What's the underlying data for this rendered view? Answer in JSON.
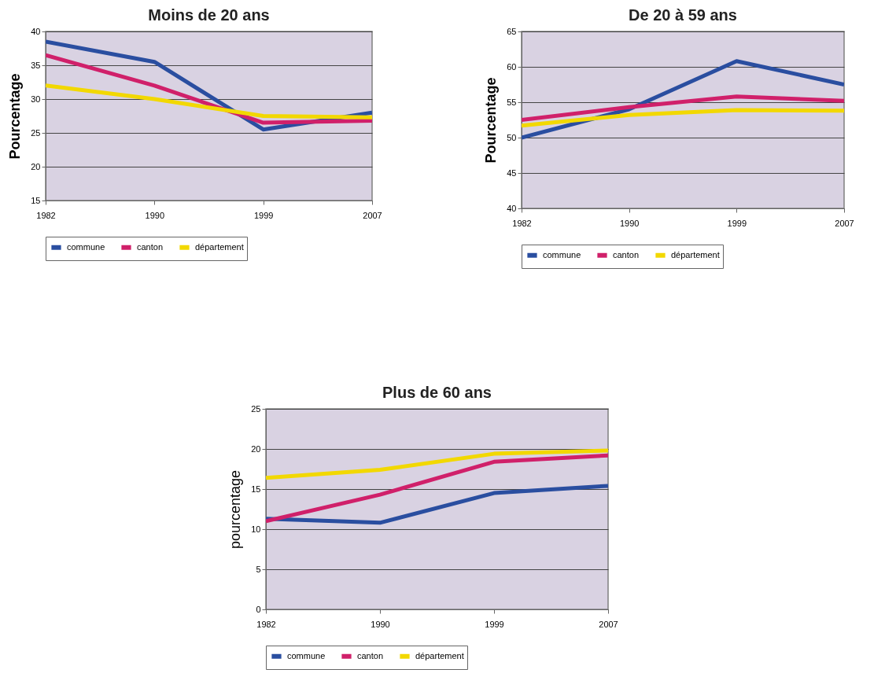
{
  "chart_data": [
    {
      "type": "line",
      "title": "Moins de 20 ans",
      "ylabel": "Pourcentage",
      "categories": [
        "1982",
        "1990",
        "1999",
        "2007"
      ],
      "ylim": [
        15,
        40
      ],
      "yticks": [
        15,
        20,
        25,
        30,
        35,
        40
      ],
      "grid": "y",
      "legend": "bottom",
      "series": [
        {
          "name": "commune",
          "color": "#2a4ea0",
          "values": [
            38.5,
            35.5,
            25.5,
            28
          ]
        },
        {
          "name": "canton",
          "color": "#d0206a",
          "values": [
            36.5,
            32,
            26.5,
            26.8
          ]
        },
        {
          "name": "département",
          "color": "#f2d800",
          "values": [
            32,
            30,
            27.5,
            27.3
          ]
        }
      ]
    },
    {
      "type": "line",
      "title": "De 20 à 59 ans",
      "ylabel": "Pourcentage",
      "categories": [
        "1982",
        "1990",
        "1999",
        "2007"
      ],
      "ylim": [
        40,
        65
      ],
      "yticks": [
        40,
        45,
        50,
        55,
        60,
        65
      ],
      "grid": "y",
      "legend": "bottom",
      "series": [
        {
          "name": "commune",
          "color": "#2a4ea0",
          "values": [
            50,
            54,
            60.8,
            57.5
          ]
        },
        {
          "name": "canton",
          "color": "#d0206a",
          "values": [
            52.5,
            54.3,
            55.8,
            55.2
          ]
        },
        {
          "name": "département",
          "color": "#f2d800",
          "values": [
            51.7,
            53.2,
            53.9,
            53.8
          ]
        }
      ]
    },
    {
      "type": "line",
      "title": "Plus de 60 ans",
      "ylabel": "pourcentage",
      "categories": [
        "1982",
        "1990",
        "1999",
        "2007"
      ],
      "ylim": [
        0,
        25
      ],
      "yticks": [
        0,
        5,
        10,
        15,
        20,
        25
      ],
      "grid": "y",
      "legend": "bottom",
      "series": [
        {
          "name": "commune",
          "color": "#2a4ea0",
          "values": [
            11.3,
            10.8,
            14.5,
            15.4
          ]
        },
        {
          "name": "canton",
          "color": "#d0206a",
          "values": [
            11,
            14.3,
            18.4,
            19.2
          ]
        },
        {
          "name": "département",
          "color": "#f2d800",
          "values": [
            16.4,
            17.4,
            19.4,
            19.8
          ]
        }
      ]
    }
  ]
}
